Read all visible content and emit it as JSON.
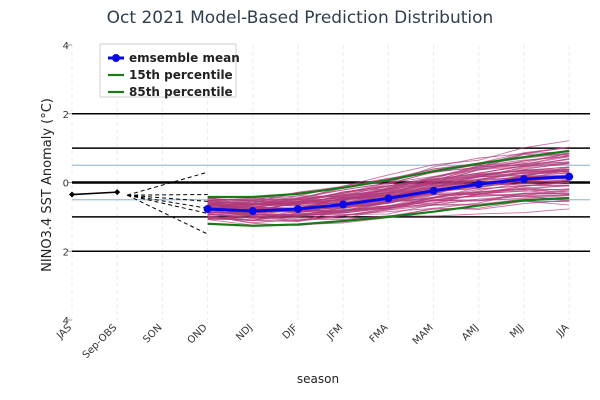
{
  "chart_data": {
    "type": "line",
    "title": "Oct 2021 Model-Based Prediction Distribution",
    "xlabel": "season",
    "ylabel": "NINO3.4 SST Anomaly (°C)",
    "categories": [
      "JAS",
      "Sep-OBS",
      "SON",
      "OND",
      "NDJ",
      "DJF",
      "JFM",
      "FMA",
      "MAM",
      "AMJ",
      "MJJ",
      "JJA"
    ],
    "ylim": [
      -4,
      4
    ],
    "yticks": [
      4,
      2,
      0,
      -2,
      -4
    ],
    "ytick_labels": [
      "4",
      "2",
      "0",
      "2",
      "4"
    ],
    "reference_lines": [
      {
        "y": 1.0,
        "color": "#000000"
      },
      {
        "y": 0.5,
        "color": "#a9c4dc"
      },
      {
        "y": 0.0,
        "color": "#000000"
      },
      {
        "y": -0.5,
        "color": "#a9c4dc"
      },
      {
        "y": -1.0,
        "color": "#000000"
      },
      {
        "y": 2.0,
        "color": "#000000"
      },
      {
        "y": -2.0,
        "color": "#000000"
      }
    ],
    "observed": {
      "x": [
        "JAS",
        "Sep-OBS"
      ],
      "y": [
        -0.35,
        -0.28
      ],
      "color": "#000000"
    },
    "series": [
      {
        "name": "emsemble mean",
        "color": "#0a0ae6",
        "x": [
          "OND",
          "NDJ",
          "DJF",
          "JFM",
          "FMA",
          "MAM",
          "AMJ",
          "MJJ",
          "JJA"
        ],
        "y": [
          -0.77,
          -0.83,
          -0.77,
          -0.64,
          -0.46,
          -0.24,
          -0.05,
          0.1,
          0.17
        ]
      },
      {
        "name": "15th percentile",
        "color": "#1a7a1a",
        "x": [
          "OND",
          "NDJ",
          "DJF",
          "JFM",
          "FMA",
          "MAM",
          "AMJ",
          "MJJ",
          "JJA"
        ],
        "y": [
          -1.2,
          -1.26,
          -1.22,
          -1.12,
          -1.0,
          -0.85,
          -0.67,
          -0.52,
          -0.45
        ]
      },
      {
        "name": "85th percentile",
        "color": "#1a7a1a",
        "x": [
          "OND",
          "NDJ",
          "DJF",
          "JFM",
          "FMA",
          "MAM",
          "AMJ",
          "MJJ",
          "JJA"
        ],
        "y": [
          -0.42,
          -0.42,
          -0.33,
          -0.15,
          0.07,
          0.33,
          0.55,
          0.74,
          0.92
        ]
      }
    ],
    "members": {
      "count": 80,
      "color": "#b03a7a",
      "x": [
        "OND",
        "NDJ",
        "DJF",
        "JFM",
        "FMA",
        "MAM",
        "AMJ",
        "MJJ",
        "JJA"
      ]
    },
    "legend_position": "top-left",
    "grid": true
  }
}
